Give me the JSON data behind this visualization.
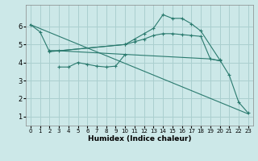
{
  "xlabel": "Humidex (Indice chaleur)",
  "bg_color": "#cce8e8",
  "grid_color": "#aacfcf",
  "line_color": "#2a7a6e",
  "xlim": [
    -0.5,
    23.5
  ],
  "ylim": [
    0.5,
    7.2
  ],
  "yticks": [
    1,
    2,
    3,
    4,
    5,
    6
  ],
  "xticks": [
    0,
    1,
    2,
    3,
    4,
    5,
    6,
    7,
    8,
    9,
    10,
    11,
    12,
    13,
    14,
    15,
    16,
    17,
    18,
    19,
    20,
    21,
    22,
    23
  ],
  "lines": [
    {
      "x": [
        0,
        1,
        2,
        10,
        11,
        12,
        13,
        14,
        15,
        16,
        17,
        18,
        20,
        21,
        22,
        23
      ],
      "y": [
        6.1,
        5.7,
        4.6,
        5.0,
        5.3,
        5.6,
        5.9,
        6.65,
        6.45,
        6.45,
        6.15,
        5.75,
        4.15,
        3.3,
        1.8,
        1.2
      ],
      "marker": true
    },
    {
      "x": [
        3,
        4,
        5,
        6,
        7,
        8,
        9,
        10
      ],
      "y": [
        3.75,
        3.75,
        4.0,
        3.9,
        3.8,
        3.75,
        3.8,
        4.45
      ],
      "marker": true
    },
    {
      "x": [
        2,
        3,
        10,
        11,
        12,
        13,
        14,
        15,
        16,
        17,
        18,
        19,
        20
      ],
      "y": [
        4.65,
        4.65,
        5.0,
        5.15,
        5.3,
        5.5,
        5.6,
        5.6,
        5.55,
        5.5,
        5.45,
        4.2,
        4.1
      ],
      "marker": true
    },
    {
      "x": [
        0,
        23
      ],
      "y": [
        6.1,
        1.15
      ],
      "marker": false
    },
    {
      "x": [
        2,
        3,
        10,
        19,
        20
      ],
      "y": [
        4.65,
        4.65,
        4.45,
        4.2,
        4.1
      ],
      "marker": false
    }
  ]
}
